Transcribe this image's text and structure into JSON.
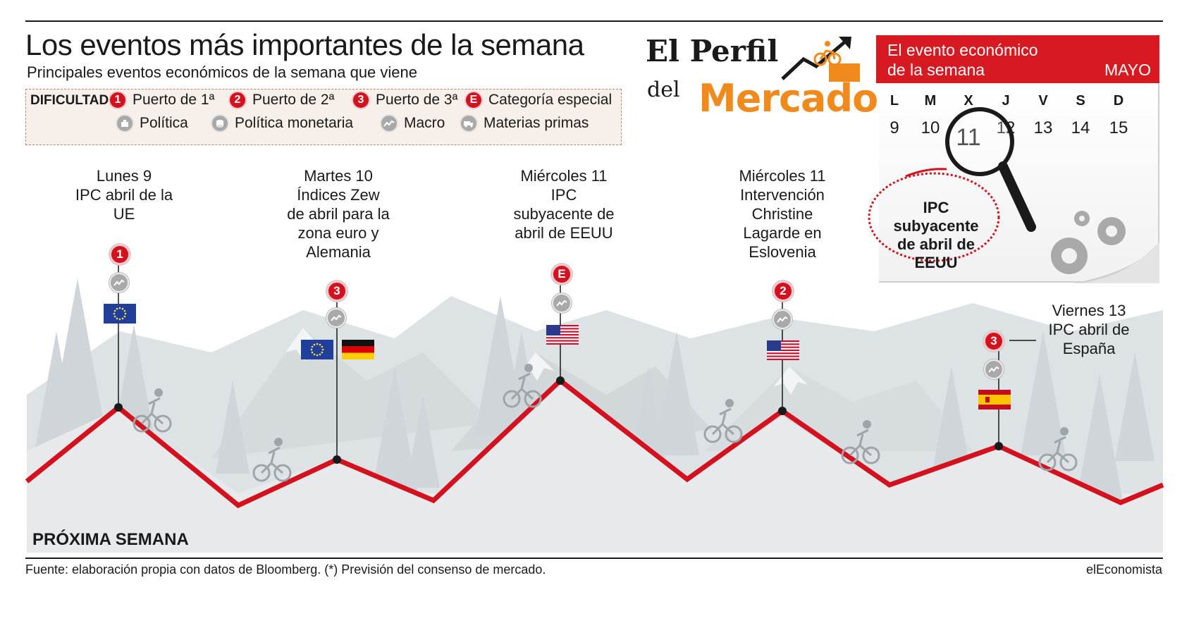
{
  "header": {
    "title": "Los eventos más importantes de la semana",
    "subtitle": "Principales eventos económicos de la semana que viene"
  },
  "legend": {
    "difficulty_label": "DIFICULTAD:",
    "items": [
      {
        "badge": "1",
        "label": "Puerto de 1ª"
      },
      {
        "badge": "2",
        "label": "Puerto de 2ª"
      },
      {
        "badge": "3",
        "label": "Puerto de 3ª"
      },
      {
        "badge": "E",
        "label": "Categoría especial"
      }
    ],
    "categories": [
      {
        "icon": "politics-icon",
        "label": "Política"
      },
      {
        "icon": "monetary-policy-icon",
        "label": "Política monetaria"
      },
      {
        "icon": "macro-icon",
        "label": "Macro"
      },
      {
        "icon": "commodities-icon",
        "label": "Materias primas"
      }
    ]
  },
  "logo": {
    "line1": "El Perfil",
    "line2": "del",
    "line3": "Mercado"
  },
  "calendar": {
    "header_line1": "El evento económico",
    "header_line2": "de la semana",
    "month": "MAYO",
    "days": [
      "L",
      "M",
      "X",
      "J",
      "V",
      "S",
      "D"
    ],
    "dates": [
      "9",
      "10",
      "11",
      "12",
      "13",
      "14",
      "15"
    ],
    "selected": "11",
    "note": "IPC subyacente de abril de EEUU"
  },
  "events": [
    {
      "text": "Lunes 9\nIPC abril de la\nUE",
      "badge": "1",
      "icon": "macro-icon",
      "flags": [
        "eu"
      ]
    },
    {
      "text": "Martes 10\nÍndices Zew\nde abril para la\nzona euro y\nAlemania",
      "badge": "3",
      "icon": "macro-icon",
      "flags": [
        "eu",
        "de"
      ]
    },
    {
      "text": "Miércoles 11\nIPC\nsubyacente de\nabril de EEUU",
      "badge": "E",
      "icon": "macro-icon",
      "flags": [
        "us"
      ]
    },
    {
      "text": "Miércoles 11\nIntervención\nChristine\nLagarde en\nEslovenia",
      "badge": "2",
      "icon": "macro-icon",
      "flags": [
        "us"
      ]
    },
    {
      "text": "Viernes 13\nIPC abril de\nEspaña",
      "badge": "3",
      "icon": "macro-icon",
      "flags": [
        "es"
      ]
    }
  ],
  "colors": {
    "route": "#d4111e",
    "accent": "#d71a22",
    "logo_orange": "#f08a1c",
    "mountain": "#dfe3e6",
    "ground": "#e9ebed"
  },
  "footer": {
    "section": "PRÓXIMA SEMANA",
    "source": "Fuente: elaboración propia con datos de Bloomberg. (*) Previsión del consenso de mercado.",
    "brand": "elEconomista"
  }
}
